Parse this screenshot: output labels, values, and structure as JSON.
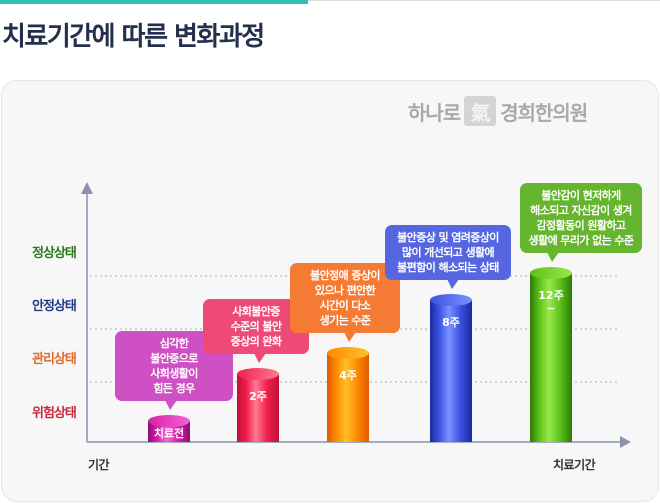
{
  "header": {
    "title": "치료기간에 따른 변화과정"
  },
  "logo": {
    "left_text": "하나로",
    "mark": "氣",
    "right_text": "경희한의원"
  },
  "chart_data": {
    "type": "bar",
    "title": "치료기간에 따른 변화과정",
    "xlabel": "치료기간",
    "ylabel": "기간",
    "y_levels": [
      {
        "label": "위험상태",
        "color": "#cc2a3c"
      },
      {
        "label": "관리상태",
        "color": "#e06a2a"
      },
      {
        "label": "안정상태",
        "color": "#1f3b8c"
      },
      {
        "label": "정상상태",
        "color": "#2a7a1a"
      }
    ],
    "bars": [
      {
        "label": "치료전",
        "sub": "",
        "level": 0.5,
        "color": "#d81fa8",
        "dark": "#8c0f75",
        "light": "#f266d6",
        "note": [
          "심각한",
          "불안증으로",
          "사회생활이",
          "힘든 경우"
        ],
        "note_color": "#cf4fc4"
      },
      {
        "label": "2주",
        "sub": "",
        "level": 1.4,
        "color": "#f0204a",
        "dark": "#c0103a",
        "light": "#ff7a92",
        "note": [
          "사회불안증",
          "수준의 불안",
          "증상의 완화"
        ],
        "note_color": "#ee4a78"
      },
      {
        "label": "4주",
        "sub": "",
        "level": 1.8,
        "color": "#ff8a00",
        "dark": "#e05a00",
        "light": "#ffc12a",
        "note": [
          "불안정애 증상이",
          "있으나 편안한",
          "시간이 다소",
          "생기는 수준"
        ],
        "note_color": "#f57a33"
      },
      {
        "label": "8주",
        "sub": "",
        "level": 2.8,
        "color": "#3b52e0",
        "dark": "#1a2aa0",
        "light": "#7a92ff",
        "note": [
          "불안증상 및 염려증상이",
          "많이 개선되고 생활에",
          "불편함이 해소되는 상태"
        ],
        "note_color": "#5566e0"
      },
      {
        "label": "12주",
        "sub": "~",
        "level": 3.3,
        "color": "#5cc21a",
        "dark": "#2f7a08",
        "light": "#9ae84a",
        "note": [
          "불안감이 현저하게",
          "해소되고 자신감이 생겨",
          "감정활동이 원활하고",
          "생활에 무리가 없는 수준"
        ],
        "note_color": "#66b52e"
      }
    ]
  }
}
